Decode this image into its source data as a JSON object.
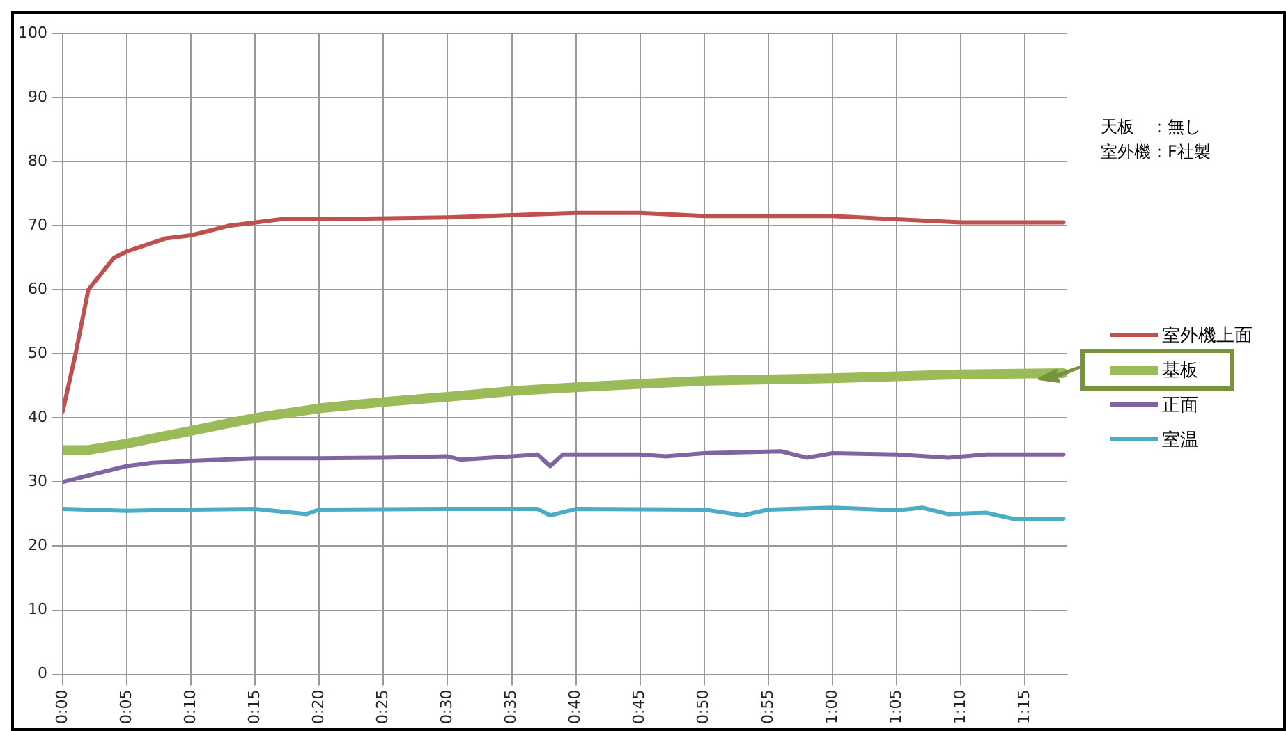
{
  "chart_data": {
    "type": "line",
    "xlim": [
      0,
      1.305
    ],
    "ylim": [
      0,
      100
    ],
    "xticks": [
      {
        "value": 0,
        "label": "0:00"
      },
      {
        "value": 0.0833,
        "label": "0:05"
      },
      {
        "value": 0.1667,
        "label": "0:10"
      },
      {
        "value": 0.25,
        "label": "0:15"
      },
      {
        "value": 0.3333,
        "label": "0:20"
      },
      {
        "value": 0.4167,
        "label": "0:25"
      },
      {
        "value": 0.5,
        "label": "0:30"
      },
      {
        "value": 0.5833,
        "label": "0:35"
      },
      {
        "value": 0.6667,
        "label": "0:40"
      },
      {
        "value": 0.75,
        "label": "0:45"
      },
      {
        "value": 0.8333,
        "label": "0:50"
      },
      {
        "value": 0.9167,
        "label": "0:55"
      },
      {
        "value": 1,
        "label": "1:00"
      },
      {
        "value": 1.0833,
        "label": "1:05"
      },
      {
        "value": 1.1667,
        "label": "1:10"
      },
      {
        "value": 1.25,
        "label": "1:15"
      }
    ],
    "yticks": [
      0,
      10,
      20,
      30,
      40,
      50,
      60,
      70,
      80,
      90,
      100
    ],
    "grid": true,
    "legend": "right",
    "marker": "none",
    "line_style": "solid",
    "annotations": [
      "天板　：無し",
      "室外機：F社製"
    ],
    "series": [
      {
        "name": "室外機上面",
        "color": "#c0504d",
        "x": [
          0,
          0.0167,
          0.0333,
          0.0667,
          0.0833,
          0.1333,
          0.1667,
          0.2167,
          0.2833,
          0.3333,
          0.5,
          0.6667,
          0.75,
          0.8333,
          1,
          1.0833,
          1.1667,
          1.3
        ],
        "values": [
          41,
          50,
          60,
          65,
          66,
          68,
          68.5,
          70,
          71,
          71,
          71.3,
          72,
          72,
          71.5,
          71.5,
          71,
          70.5,
          70.5
        ]
      },
      {
        "name": "基板",
        "color": "#9bbb59",
        "x": [
          0,
          0.0333,
          0.0833,
          0.1667,
          0.25,
          0.3333,
          0.4167,
          0.5,
          0.5833,
          0.6667,
          0.75,
          0.8333,
          0.9167,
          1,
          1.0833,
          1.1667,
          1.3
        ],
        "values": [
          35,
          35,
          36,
          38,
          40,
          41.5,
          42.5,
          43.3,
          44.2,
          44.8,
          45.3,
          45.8,
          46,
          46.2,
          46.5,
          46.8,
          47
        ]
      },
      {
        "name": "正面",
        "color": "#8064a2",
        "x": [
          0,
          0.0333,
          0.0667,
          0.0833,
          0.1167,
          0.1667,
          0.25,
          0.3333,
          0.4167,
          0.5,
          0.5167,
          0.5833,
          0.6167,
          0.6333,
          0.65,
          0.75,
          0.7833,
          0.8333,
          0.9333,
          0.9667,
          1,
          1.0833,
          1.15,
          1.2,
          1.3
        ],
        "values": [
          30,
          31,
          32,
          32.5,
          33,
          33.3,
          33.7,
          33.7,
          33.8,
          34,
          33.5,
          34,
          34.3,
          32.5,
          34.3,
          34.3,
          34,
          34.5,
          34.8,
          33.8,
          34.5,
          34.3,
          33.8,
          34.3,
          34.3
        ]
      },
      {
        "name": "室温",
        "color": "#4bacc6",
        "x": [
          0,
          0.0833,
          0.1667,
          0.25,
          0.3167,
          0.3333,
          0.5,
          0.6167,
          0.6333,
          0.6667,
          0.8333,
          0.8833,
          0.9167,
          1,
          1.0833,
          1.1167,
          1.15,
          1.2,
          1.2333,
          1.3
        ],
        "values": [
          25.8,
          25.5,
          25.7,
          25.8,
          25,
          25.7,
          25.8,
          25.8,
          24.8,
          25.8,
          25.7,
          24.8,
          25.7,
          26,
          25.6,
          26,
          25,
          25.2,
          24.3,
          24.3
        ]
      }
    ]
  }
}
